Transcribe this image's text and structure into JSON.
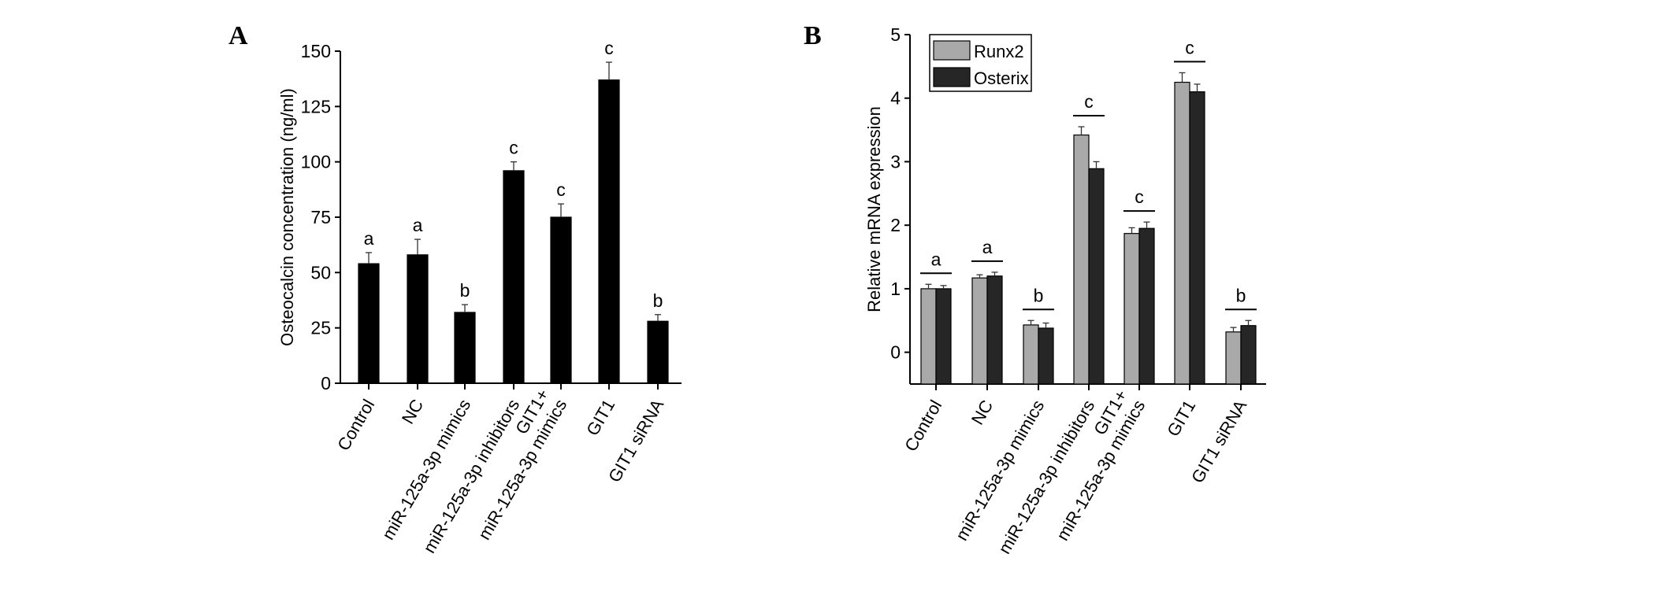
{
  "chart_data": [
    {
      "panel": "A",
      "type": "bar",
      "title": "",
      "xlabel": "",
      "ylabel": "Osteocalcin concentration (ng/ml)",
      "ylim": [
        0,
        150
      ],
      "yticks": [
        0,
        25,
        50,
        75,
        100,
        125,
        150
      ],
      "categories": [
        [
          "Control"
        ],
        [
          "NC"
        ],
        [
          "miR-125a-3p mimics"
        ],
        [
          "miR-125a-3p inhibitors"
        ],
        [
          "GIT1+",
          "miR-125a-3p mimics"
        ],
        [
          "GIT1"
        ],
        [
          "GIT1 siRNA"
        ]
      ],
      "series": [
        {
          "name": "Osteocalcin",
          "color": "#000000",
          "values": [
            54,
            58,
            32,
            96,
            75,
            137,
            28
          ],
          "errors": [
            5,
            7,
            3.5,
            4,
            6,
            8,
            3
          ]
        }
      ],
      "annotations": [
        "a",
        "a",
        "b",
        "c",
        "c",
        "c",
        "b"
      ],
      "grid": false
    },
    {
      "panel": "B",
      "type": "bar",
      "title": "",
      "xlabel": "",
      "ylabel": "Relative mRNA expression",
      "ylim": [
        -0.5,
        5
      ],
      "yticks": [
        0,
        1,
        2,
        3,
        4,
        5
      ],
      "categories": [
        [
          "Control"
        ],
        [
          "NC"
        ],
        [
          "miR-125a-3p mimics"
        ],
        [
          "miR-125a-3p inhibitors"
        ],
        [
          "GIT1+",
          "miR-125a-3p mimics"
        ],
        [
          "GIT1"
        ],
        [
          "GIT1 siRNA"
        ]
      ],
      "series": [
        {
          "name": "Runx2",
          "color": "#a9a9a9",
          "values": [
            1.0,
            1.17,
            0.43,
            3.42,
            1.87,
            4.25,
            0.32
          ],
          "errors": [
            0.07,
            0.05,
            0.07,
            0.13,
            0.09,
            0.15,
            0.07
          ]
        },
        {
          "name": "Osterix",
          "color": "#262626",
          "values": [
            1.0,
            1.2,
            0.38,
            2.89,
            1.95,
            4.1,
            0.42
          ],
          "errors": [
            0.05,
            0.06,
            0.08,
            0.11,
            0.1,
            0.12,
            0.08
          ]
        }
      ],
      "annotations": [
        "a",
        "a",
        "b",
        "c",
        "c",
        "c",
        "b"
      ],
      "legend": "top-left",
      "grid": false
    }
  ]
}
